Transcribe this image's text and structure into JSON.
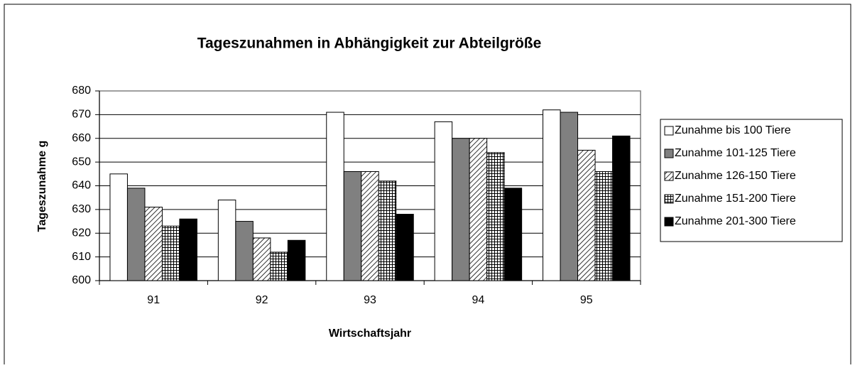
{
  "chart_data": {
    "type": "bar",
    "title": "Tageszunahmen in Abhängigkeit zur Abteilgröße",
    "x_label": "Wirtschaftsjahr",
    "y_label": "Tageszunahme  g",
    "categories": [
      "91",
      "92",
      "93",
      "94",
      "95"
    ],
    "series": [
      {
        "name": "Zunahme bis 100 Tiere",
        "color": "#ffffff",
        "values": [
          645,
          634,
          671,
          667,
          672
        ]
      },
      {
        "name": "Zunahme 101-125 Tiere",
        "color": "#808080",
        "values": [
          639,
          625,
          646,
          660,
          671
        ]
      },
      {
        "name": "Zunahme 126-150 Tiere",
        "color": "#000000",
        "pattern": "hatch",
        "values": [
          631,
          618,
          646,
          660,
          655
        ]
      },
      {
        "name": "Zunahme 151-200 Tiere",
        "color": "#000000",
        "pattern": "grid",
        "values": [
          623,
          612,
          642,
          654,
          646
        ]
      },
      {
        "name": "Zunahme 201-300 Tiere",
        "color": "#000000",
        "values": [
          626,
          617,
          628,
          639,
          661
        ]
      }
    ],
    "ylim": [
      600,
      680
    ],
    "yticks": [
      600,
      610,
      620,
      630,
      640,
      650,
      660,
      670,
      680
    ],
    "grid": true,
    "legend": "right"
  }
}
